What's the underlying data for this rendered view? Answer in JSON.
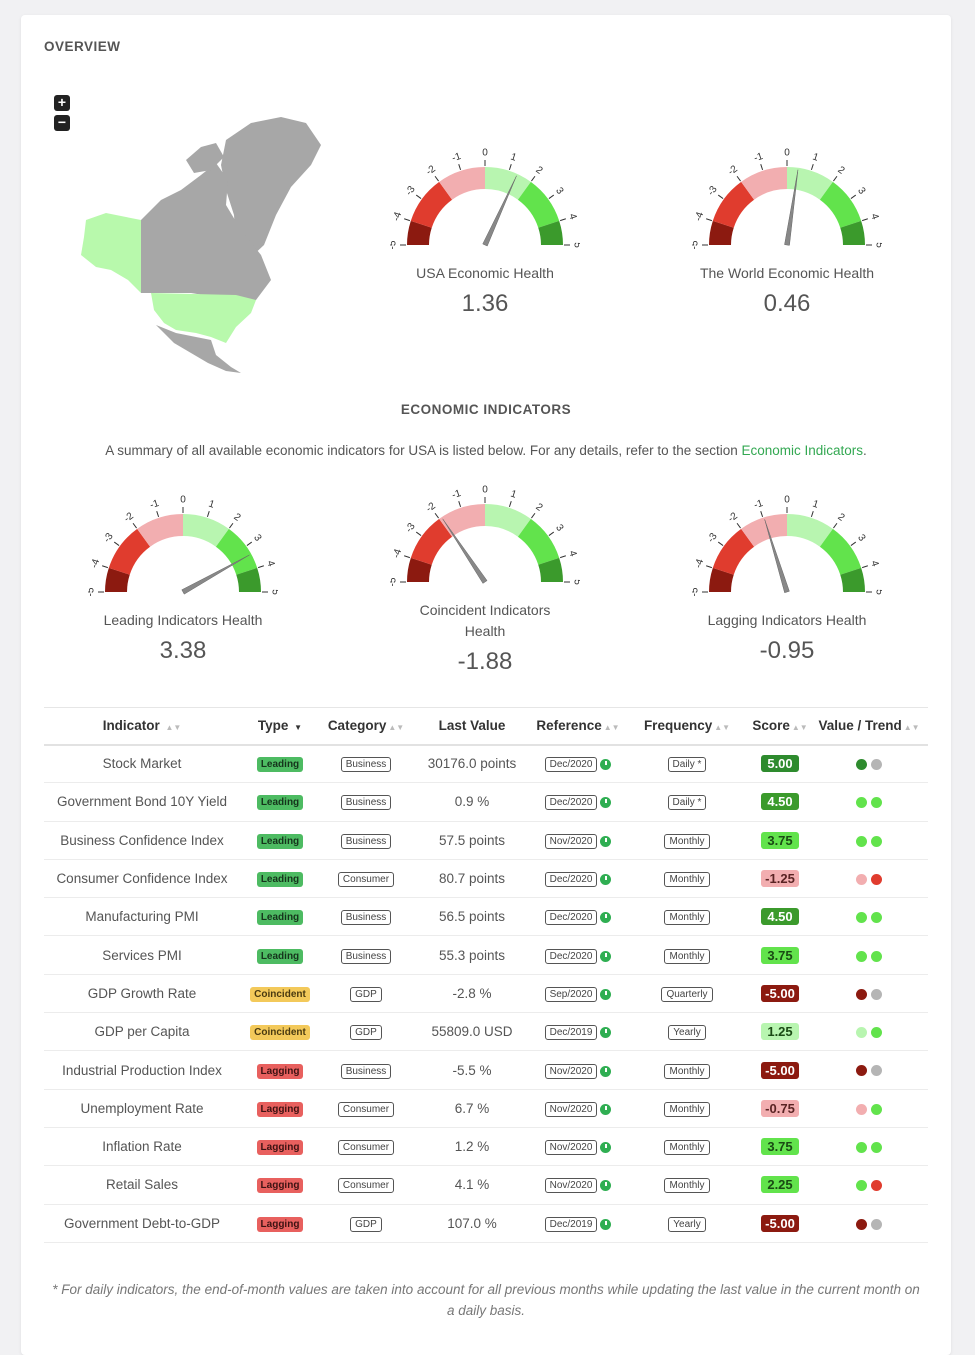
{
  "overview": {
    "title": "OVERVIEW"
  },
  "map_controls": {
    "zoom_in": "+",
    "zoom_out": "−"
  },
  "gauges_top": [
    {
      "label": "USA Economic Health",
      "value": "1.36",
      "value_num": 1.36
    },
    {
      "label": "The World Economic Health",
      "value": "0.46",
      "value_num": 0.46
    }
  ],
  "indicators_section": {
    "title": "ECONOMIC INDICATORS",
    "summary_prefix": "A summary of all available economic indicators for USA is listed below. For any details, refer to the section ",
    "summary_link": "Economic Indicators",
    "summary_suffix": "."
  },
  "gauges_mid": [
    {
      "label": "Leading Indicators Health",
      "value": "3.38",
      "value_num": 3.38
    },
    {
      "label": "Coincident Indicators Health",
      "value": "-1.88",
      "value_num": -1.88
    },
    {
      "label": "Lagging Indicators Health",
      "value": "-0.95",
      "value_num": -0.95
    }
  ],
  "gauge_ticks": [
    "-5",
    "-4",
    "-3",
    "-2",
    "-1",
    "0",
    "1",
    "2",
    "3",
    "4",
    "5"
  ],
  "colors": {
    "dark_red": "#8c1a10",
    "red": "#e03c2e",
    "pink": "#f2aeb0",
    "light_green": "#b8f5b0",
    "green": "#62e34c",
    "dark_green": "#3b9a2c",
    "needle": "#888888",
    "map_gray": "#a7a7a7",
    "map_green": "#b8f9ac"
  },
  "table": {
    "headers": [
      "Indicator",
      "Type",
      "Category",
      "Last Value",
      "Reference",
      "Frequency",
      "Score",
      "Value / Trend"
    ],
    "rows": [
      {
        "indicator": "Stock Market",
        "type": "Leading",
        "category": "Business",
        "last_value": "30176.0 points",
        "reference": "Dec/2020",
        "frequency": "Daily *",
        "score": "5.00",
        "score_bg": "#2e8b2e",
        "score_fg": "#ffffff",
        "dot1": "#2e8b2e",
        "dot2": "#b5b5b5"
      },
      {
        "indicator": "Government Bond 10Y Yield",
        "type": "Leading",
        "category": "Business",
        "last_value": "0.9 %",
        "reference": "Dec/2020",
        "frequency": "Daily *",
        "score": "4.50",
        "score_bg": "#3b9a2c",
        "score_fg": "#ffffff",
        "dot1": "#62e34c",
        "dot2": "#62e34c"
      },
      {
        "indicator": "Business Confidence Index",
        "type": "Leading",
        "category": "Business",
        "last_value": "57.5 points",
        "reference": "Nov/2020",
        "frequency": "Monthly",
        "score": "3.75",
        "score_bg": "#62e34c",
        "score_fg": "#1a4a14",
        "dot1": "#62e34c",
        "dot2": "#62e34c"
      },
      {
        "indicator": "Consumer Confidence Index",
        "type": "Leading",
        "category": "Consumer",
        "last_value": "80.7 points",
        "reference": "Dec/2020",
        "frequency": "Monthly",
        "score": "-1.25",
        "score_bg": "#f2aeb0",
        "score_fg": "#5a2424",
        "dot1": "#f2aeb0",
        "dot2": "#e03c2e"
      },
      {
        "indicator": "Manufacturing PMI",
        "type": "Leading",
        "category": "Business",
        "last_value": "56.5 points",
        "reference": "Dec/2020",
        "frequency": "Monthly",
        "score": "4.50",
        "score_bg": "#3b9a2c",
        "score_fg": "#ffffff",
        "dot1": "#62e34c",
        "dot2": "#62e34c"
      },
      {
        "indicator": "Services PMI",
        "type": "Leading",
        "category": "Business",
        "last_value": "55.3 points",
        "reference": "Dec/2020",
        "frequency": "Monthly",
        "score": "3.75",
        "score_bg": "#62e34c",
        "score_fg": "#1a4a14",
        "dot1": "#62e34c",
        "dot2": "#62e34c"
      },
      {
        "indicator": "GDP Growth Rate",
        "type": "Coincident",
        "category": "GDP",
        "last_value": "-2.8 %",
        "reference": "Sep/2020",
        "frequency": "Quarterly",
        "score": "-5.00",
        "score_bg": "#8c1a10",
        "score_fg": "#ffffff",
        "dot1": "#8c1a10",
        "dot2": "#b5b5b5"
      },
      {
        "indicator": "GDP per Capita",
        "type": "Coincident",
        "category": "GDP",
        "last_value": "55809.0 USD",
        "reference": "Dec/2019",
        "frequency": "Yearly",
        "score": "1.25",
        "score_bg": "#b8f5b0",
        "score_fg": "#1a4a14",
        "dot1": "#b8f5b0",
        "dot2": "#62e34c"
      },
      {
        "indicator": "Industrial Production Index",
        "type": "Lagging",
        "category": "Business",
        "last_value": "-5.5 %",
        "reference": "Nov/2020",
        "frequency": "Monthly",
        "score": "-5.00",
        "score_bg": "#8c1a10",
        "score_fg": "#ffffff",
        "dot1": "#8c1a10",
        "dot2": "#b5b5b5"
      },
      {
        "indicator": "Unemployment Rate",
        "type": "Lagging",
        "category": "Consumer",
        "last_value": "6.7 %",
        "reference": "Nov/2020",
        "frequency": "Monthly",
        "score": "-0.75",
        "score_bg": "#f2aeb0",
        "score_fg": "#5a2424",
        "dot1": "#f2aeb0",
        "dot2": "#62e34c"
      },
      {
        "indicator": "Inflation Rate",
        "type": "Lagging",
        "category": "Consumer",
        "last_value": "1.2 %",
        "reference": "Nov/2020",
        "frequency": "Monthly",
        "score": "3.75",
        "score_bg": "#62e34c",
        "score_fg": "#1a4a14",
        "dot1": "#62e34c",
        "dot2": "#62e34c"
      },
      {
        "indicator": "Retail Sales",
        "type": "Lagging",
        "category": "Consumer",
        "last_value": "4.1 %",
        "reference": "Nov/2020",
        "frequency": "Monthly",
        "score": "2.25",
        "score_bg": "#62e34c",
        "score_fg": "#1a4a14",
        "dot1": "#62e34c",
        "dot2": "#e03c2e"
      },
      {
        "indicator": "Government Debt-to-GDP",
        "type": "Lagging",
        "category": "GDP",
        "last_value": "107.0 %",
        "reference": "Dec/2019",
        "frequency": "Yearly",
        "score": "-5.00",
        "score_bg": "#8c1a10",
        "score_fg": "#ffffff",
        "dot1": "#8c1a10",
        "dot2": "#b5b5b5"
      }
    ]
  },
  "footnote": "* For daily indicators, the end-of-month values are taken into account for all previous months while updating the last value in the current month on a daily basis."
}
